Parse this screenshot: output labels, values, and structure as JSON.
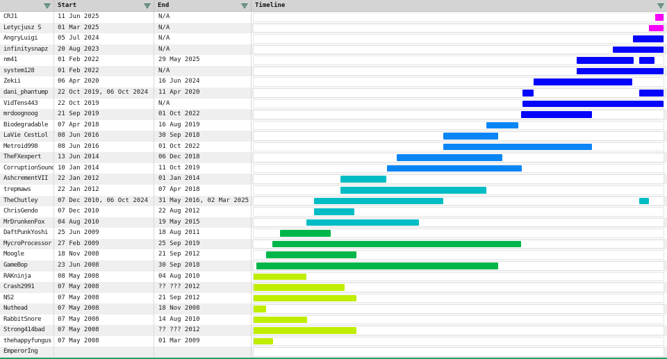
{
  "header": {
    "columns": [
      {
        "label": "",
        "name": "member"
      },
      {
        "label": "Start",
        "name": "start"
      },
      {
        "label": "End",
        "name": "end"
      },
      {
        "label": "Timeline",
        "name": "timeline"
      }
    ],
    "filter_icon_color": "#33705a"
  },
  "timeline_scale": {
    "min": "2008-05-07",
    "max": "2025-10-18"
  },
  "colors": {
    "magenta": "#f602f6",
    "blue": "#0505fa",
    "azure": "#0a85f6",
    "teal": "#00bcc4",
    "green": "#00b54a",
    "chartreuse": "#bfee00",
    "bottom_border": "#2e9e5c",
    "header_bg": "#d4d4d4",
    "stripe": "#efefef"
  },
  "rows": [
    {
      "name": "CRJ1",
      "start": "11 Jun 2025",
      "end": "N/A",
      "color": "magenta",
      "segments": [
        {
          "from": "2025-06-11",
          "to": "present"
        }
      ]
    },
    {
      "name": "Letycjusz S",
      "start": "01 Mar 2025",
      "end": "N/A",
      "color": "magenta",
      "segments": [
        {
          "from": "2025-03-01",
          "to": "present"
        }
      ]
    },
    {
      "name": "AngryLuigi",
      "start": "05 Jul 2024",
      "end": "N/A",
      "color": "blue",
      "segments": [
        {
          "from": "2024-07-05",
          "to": "present"
        }
      ]
    },
    {
      "name": "infinitysnapz",
      "start": "20 Aug 2023",
      "end": "N/A",
      "color": "blue",
      "segments": [
        {
          "from": "2023-08-20",
          "to": "present"
        }
      ]
    },
    {
      "name": "nm41",
      "start": "01 Feb 2022",
      "end": "29 May 2025",
      "color": "blue",
      "segments": [
        {
          "from": "2022-02-01",
          "to": "2024-07-10"
        },
        {
          "from": "2024-10-06",
          "to": "2025-05-29"
        }
      ]
    },
    {
      "name": "system128",
      "start": "01 Feb 2022",
      "end": "N/A",
      "color": "blue",
      "segments": [
        {
          "from": "2022-02-01",
          "to": "present"
        }
      ]
    },
    {
      "name": "Zekii",
      "start": "06 Apr 2020",
      "end": "16 Jun 2024",
      "color": "blue",
      "segments": [
        {
          "from": "2020-04-06",
          "to": "2024-06-16"
        }
      ]
    },
    {
      "name": "dani_phantump",
      "start": "22 Oct 2019, 06 Oct 2024",
      "end": "11 Apr 2020",
      "color": "blue",
      "segments": [
        {
          "from": "2019-10-22",
          "to": "2020-04-11"
        },
        {
          "from": "2024-10-06",
          "to": "present"
        }
      ]
    },
    {
      "name": "VidTens443",
      "start": "22 Oct 2019",
      "end": "N/A",
      "color": "blue",
      "segments": [
        {
          "from": "2019-10-22",
          "to": "present"
        }
      ]
    },
    {
      "name": "mrdoognoog",
      "start": "21 Sep 2019",
      "end": "01 Oct 2022",
      "color": "blue",
      "segments": [
        {
          "from": "2019-09-21",
          "to": "2022-10-01"
        }
      ]
    },
    {
      "name": "Biodegradable",
      "start": "07 Apr 2018",
      "end": "16 Aug 2019",
      "color": "azure",
      "segments": [
        {
          "from": "2018-04-07",
          "to": "2019-08-16"
        }
      ]
    },
    {
      "name": "LaVie CestLol",
      "start": "08 Jun 2016",
      "end": "30 Sep 2018",
      "color": "azure",
      "segments": [
        {
          "from": "2016-06-08",
          "to": "2018-09-30"
        }
      ]
    },
    {
      "name": "Metroid998",
      "start": "08 Jun 2016",
      "end": "01 Oct 2022",
      "color": "azure",
      "segments": [
        {
          "from": "2016-06-08",
          "to": "2022-10-01"
        }
      ]
    },
    {
      "name": "TheFXexpert",
      "start": "13 Jun 2014",
      "end": "06 Dec 2018",
      "color": "azure",
      "segments": [
        {
          "from": "2014-06-13",
          "to": "2018-12-06"
        }
      ]
    },
    {
      "name": "CorruptionSound",
      "start": "10 Jan 2014",
      "end": "11 Oct 2019",
      "color": "azure",
      "segments": [
        {
          "from": "2014-01-10",
          "to": "2019-10-11"
        }
      ]
    },
    {
      "name": "AshcrementVII",
      "start": "22 Jan 2012",
      "end": "01 Jan 2014",
      "color": "teal",
      "segments": [
        {
          "from": "2012-01-22",
          "to": "2014-01-01"
        }
      ]
    },
    {
      "name": "trepmaws",
      "start": "22 Jan 2012",
      "end": "07 Apr 2018",
      "color": "teal",
      "segments": [
        {
          "from": "2012-01-22",
          "to": "2018-04-07"
        }
      ]
    },
    {
      "name": "TheChutley",
      "start": "07 Dec 2010, 06 Oct 2024",
      "end": "31 May 2016, 02 Mar 2025",
      "color": "teal",
      "segments": [
        {
          "from": "2010-12-07",
          "to": "2016-05-31"
        },
        {
          "from": "2024-10-06",
          "to": "2025-03-02"
        }
      ]
    },
    {
      "name": "ChrisGendo",
      "start": "07 Dec 2010",
      "end": "22 Aug 2012",
      "color": "teal",
      "segments": [
        {
          "from": "2010-12-07",
          "to": "2012-08-22"
        }
      ]
    },
    {
      "name": "MrDrunkenFox",
      "start": "04 Aug 2010",
      "end": "19 May 2015",
      "color": "teal",
      "segments": [
        {
          "from": "2010-08-04",
          "to": "2015-05-19"
        }
      ]
    },
    {
      "name": "DaftPunkYoshi",
      "start": "25 Jun 2009",
      "end": "18 Aug 2011",
      "color": "green",
      "segments": [
        {
          "from": "2009-06-25",
          "to": "2011-08-18"
        }
      ]
    },
    {
      "name": "MycroProcessor",
      "start": "27 Feb 2009",
      "end": "25 Sep 2019",
      "color": "green",
      "segments": [
        {
          "from": "2009-02-27",
          "to": "2019-09-25"
        }
      ]
    },
    {
      "name": "Moogle",
      "start": "18 Nov 2008",
      "end": "21 Sep 2012",
      "color": "green",
      "segments": [
        {
          "from": "2008-11-18",
          "to": "2012-09-21"
        }
      ]
    },
    {
      "name": "GameBop",
      "start": "23 Jun 2008",
      "end": "30 Sep 2018",
      "color": "green",
      "segments": [
        {
          "from": "2008-06-23",
          "to": "2018-09-30"
        }
      ]
    },
    {
      "name": "RAKninja",
      "start": "08 May 2008",
      "end": "04 Aug 2010",
      "color": "chartreuse",
      "segments": [
        {
          "from": "2008-05-08",
          "to": "2010-08-04"
        }
      ]
    },
    {
      "name": "Crash2991",
      "start": "07 May 2008",
      "end": "?? ??? 2012",
      "color": "chartreuse",
      "segments": [
        {
          "from": "2008-05-07",
          "to": "2012-03-20"
        }
      ]
    },
    {
      "name": "NS2",
      "start": "07 May 2008",
      "end": "21 Sep 2012",
      "color": "chartreuse",
      "segments": [
        {
          "from": "2008-05-07",
          "to": "2012-09-21"
        }
      ]
    },
    {
      "name": "Nuthead",
      "start": "07 May 2008",
      "end": "18 Nov 2008",
      "color": "chartreuse",
      "segments": [
        {
          "from": "2008-05-07",
          "to": "2008-11-18"
        }
      ]
    },
    {
      "name": "RabbitSnore",
      "start": "07 May 2008",
      "end": "14 Aug 2010",
      "color": "chartreuse",
      "segments": [
        {
          "from": "2008-05-07",
          "to": "2010-08-14"
        }
      ]
    },
    {
      "name": "Strong414bad",
      "start": "07 May 2008",
      "end": "?? ??? 2012",
      "color": "chartreuse",
      "segments": [
        {
          "from": "2008-05-07",
          "to": "2012-09-25"
        }
      ]
    },
    {
      "name": "thehappyfungus",
      "start": "07 May 2008",
      "end": "01 Mar 2009",
      "color": "chartreuse",
      "segments": [
        {
          "from": "2008-05-07",
          "to": "2009-03-01"
        }
      ]
    },
    {
      "name": "EmperorIng",
      "start": "",
      "end": "",
      "color": "none",
      "segments": []
    }
  ]
}
